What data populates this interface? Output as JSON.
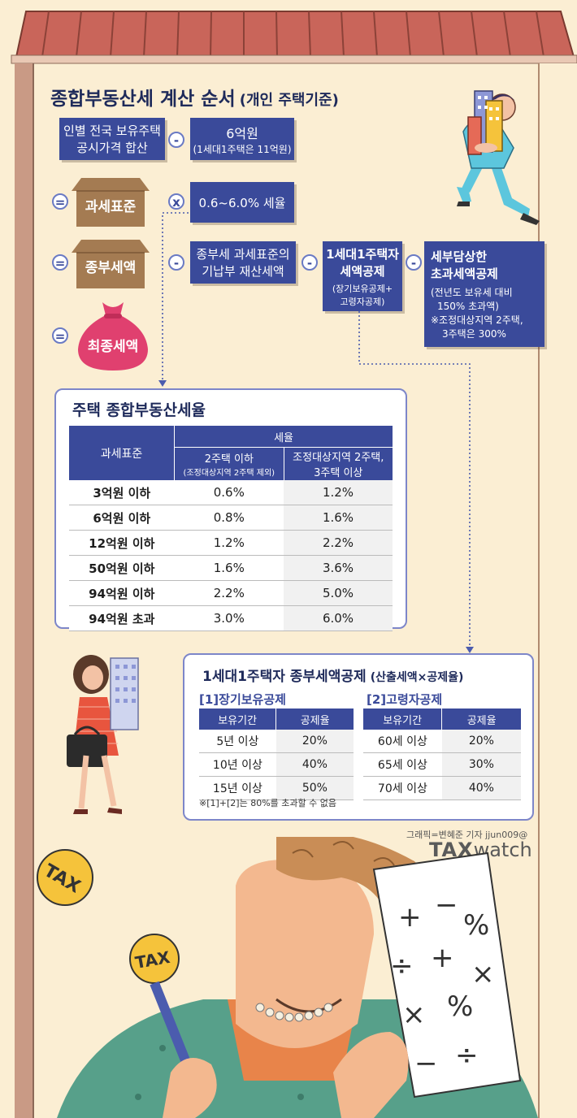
{
  "title": "종합부동산세 계산 순서",
  "title_note": "(개인 주택기준)",
  "flow": {
    "box1": {
      "line1": "인별 전국 보유주택",
      "line2": "공시가격 합산"
    },
    "box2": {
      "line1": "6억원",
      "line2": "(1세대1주택은 11억원)"
    },
    "house1": "과세표준",
    "box3": "0.6~6.0% 세율",
    "house2": "종부세액",
    "box4": {
      "line1": "종부세 과세표준의",
      "line2": "기납부 재산세액"
    },
    "box5": {
      "line1": "1세대1주택자",
      "line2": "세액공제",
      "note1": "(장기보유공제+",
      "note2": "고령자공제)"
    },
    "box6": {
      "line1": "세부담상한",
      "line2": "초과세액공제",
      "note1": "(전년도 보유세 대비",
      "note2": "150% 초과액)",
      "note3": "※조정대상지역 2주택,",
      "note4": "3주택은 300%"
    },
    "bag": "최종세액",
    "op_minus": "-",
    "op_times": "x",
    "op_equals": "="
  },
  "rate_table": {
    "title": "주택 종합부동산세율",
    "col_base": "과세표준",
    "col_rate": "세율",
    "col_a": "2주택 이하",
    "col_a_note": "(조정대상지역 2주택 제외)",
    "col_b1": "조정대상지역 2주택,",
    "col_b2": "3주택 이상",
    "rows": [
      {
        "base": "3억원 이하",
        "a": "0.6%",
        "b": "1.2%"
      },
      {
        "base": "6억원 이하",
        "a": "0.8%",
        "b": "1.6%"
      },
      {
        "base": "12억원 이하",
        "a": "1.2%",
        "b": "2.2%"
      },
      {
        "base": "50억원 이하",
        "a": "1.6%",
        "b": "3.6%"
      },
      {
        "base": "94억원 이하",
        "a": "2.2%",
        "b": "5.0%"
      },
      {
        "base": "94억원 초과",
        "a": "3.0%",
        "b": "6.0%"
      }
    ]
  },
  "credit": {
    "title": "1세대1주택자 종부세액공제",
    "title_note": "(산출세액×공제율)",
    "long_title": "[1]장기보유공제",
    "long_col1": "보유기간",
    "long_col2": "공제율",
    "long_rows": [
      {
        "period": "5년 이상",
        "rate": "20%"
      },
      {
        "period": "10년 이상",
        "rate": "40%"
      },
      {
        "period": "15년 이상",
        "rate": "50%"
      }
    ],
    "old_title": "[2]고령자공제",
    "old_col1": "보유기간",
    "old_col2": "공제율",
    "old_rows": [
      {
        "period": "60세 이상",
        "rate": "20%"
      },
      {
        "period": "65세 이상",
        "rate": "30%"
      },
      {
        "period": "70세 이상",
        "rate": "40%"
      }
    ],
    "note": "※[1]+[2]는 80%를 초과할 수 없음"
  },
  "byline": "그래픽=변혜준 기자 jjun009@",
  "logo_tax": "TAX",
  "logo_watch": "watch",
  "tax_badge1": "TAX",
  "tax_badge2": "TAX",
  "paper_symbols": [
    "+",
    "−",
    "%",
    "÷",
    "+",
    "×",
    "×",
    "%",
    "−",
    "÷"
  ],
  "colors": {
    "navy": "#3a4a9a",
    "brown": "#a47b52",
    "roof": "#c9655a",
    "pink": "#e0406f",
    "bg": "#fbeed3"
  }
}
